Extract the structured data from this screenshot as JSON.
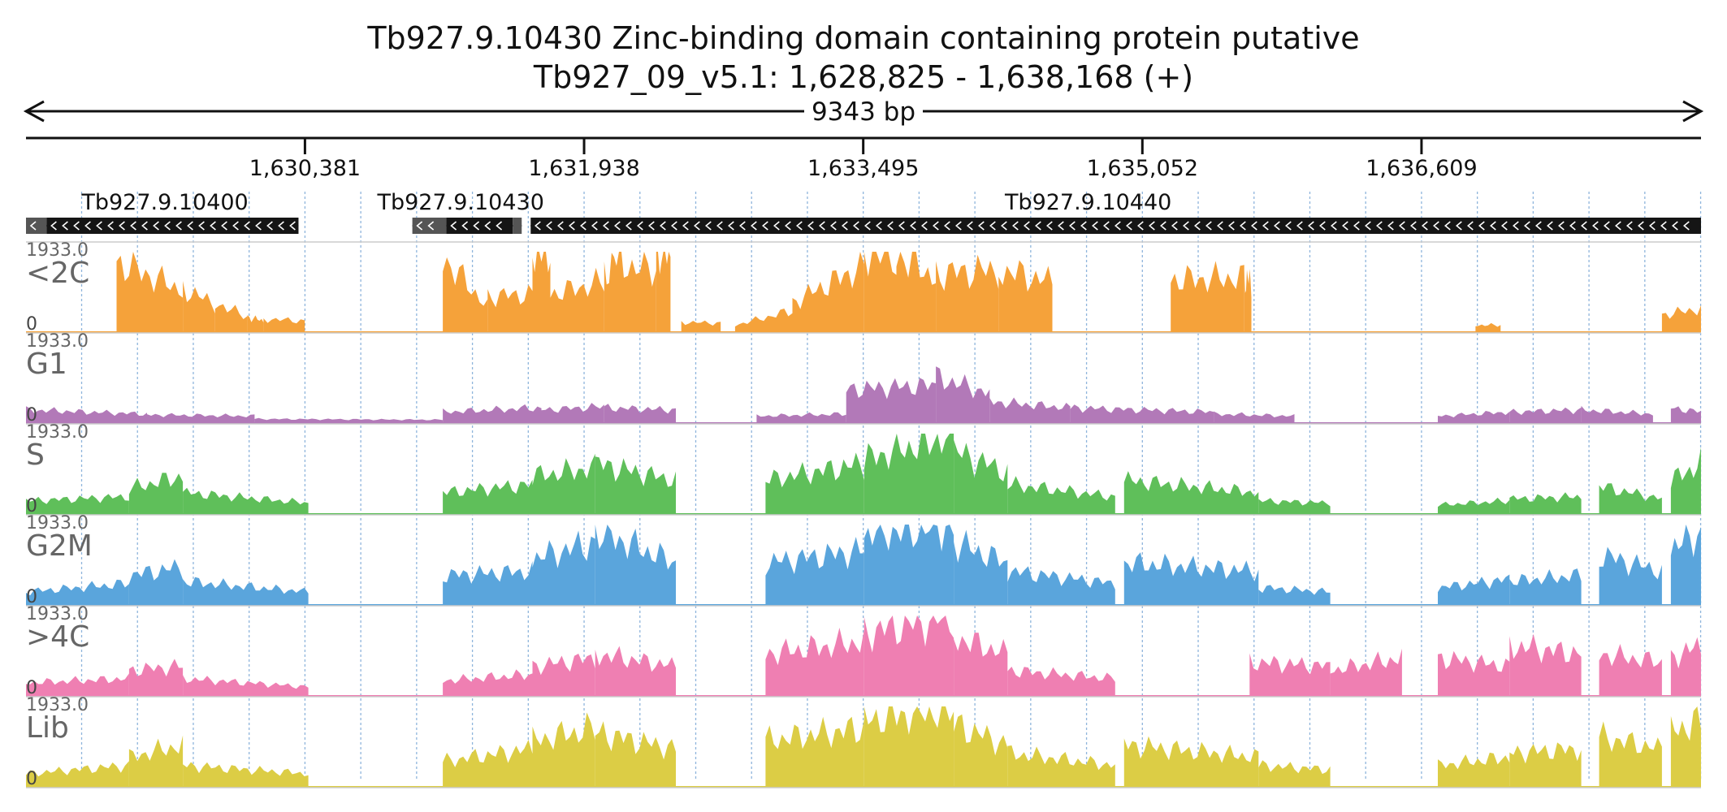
{
  "chart_data": {
    "type": "area",
    "title": "Tb927.9.10430  Zinc-binding domain containing protein  putative",
    "subtitle": "Tb927_09_v5.1: 1,628,825 - 1,638,168 (+)",
    "span_label": "9343 bp",
    "x_range": [
      1628825,
      1638168
    ],
    "x_ticks": [
      1630381,
      1631938,
      1633495,
      1635052,
      1636609
    ],
    "x_tick_labels": [
      "1,630,381",
      "1,631,938",
      "1,633,495",
      "1,635,052",
      "1,636,609"
    ],
    "grid": true,
    "genes": [
      {
        "name": "Tb927.9.10400",
        "strand": "-",
        "start": 1628825,
        "end": 1630345,
        "label_x": 1629600,
        "blocks": [
          [
            1628825,
            1628940,
            "light"
          ],
          [
            1628940,
            1630345,
            "dark"
          ]
        ]
      },
      {
        "name": "Tb927.9.10430",
        "strand": "-",
        "start": 1630980,
        "end": 1631590,
        "label_x": 1631250,
        "blocks": [
          [
            1630980,
            1631170,
            "light"
          ],
          [
            1631170,
            1631540,
            "dark"
          ],
          [
            1631540,
            1631590,
            "light"
          ]
        ]
      },
      {
        "name": "Tb927.9.10440",
        "strand": "-",
        "start": 1631640,
        "end": 1638168,
        "label_x": 1634750,
        "blocks": [
          [
            1631640,
            1638168,
            "dark"
          ]
        ]
      }
    ],
    "tracks": [
      {
        "name": "<2C",
        "color": "#f5a23a",
        "max": 1933.0,
        "min": 0,
        "max_label": "1933.0",
        "min_label": "0"
      },
      {
        "name": "G1",
        "color": "#b279b8",
        "max": 1933.0,
        "min": 0,
        "max_label": "1933.0",
        "min_label": "0"
      },
      {
        "name": "S",
        "color": "#5fbf5a",
        "max": 1933.0,
        "min": 0,
        "max_label": "1933.0",
        "min_label": "0"
      },
      {
        "name": "G2M",
        "color": "#5aa5dc",
        "max": 1933.0,
        "min": 0,
        "max_label": "1933.0",
        "min_label": "0"
      },
      {
        "name": ">4C",
        "color": "#ef7fb2",
        "max": 1933.0,
        "min": 0,
        "max_label": "1933.0",
        "min_label": "0"
      },
      {
        "name": "Lib",
        "color": "#dccd45",
        "max": 1933.0,
        "min": 0,
        "max_label": "1933.0",
        "min_label": "0"
      }
    ],
    "coverage": {
      "<2C": [
        [
          1629330,
          1629700,
          1700,
          1000
        ],
        [
          1629700,
          1629880,
          1050,
          650
        ],
        [
          1629880,
          1630060,
          700,
          350
        ],
        [
          1630060,
          1630150,
          350,
          250
        ],
        [
          1630150,
          1630380,
          300,
          250
        ],
        [
          1631150,
          1631400,
          1800,
          600
        ],
        [
          1631400,
          1631650,
          850,
          900
        ],
        [
          1631650,
          1631750,
          1950,
          1950
        ],
        [
          1631750,
          1632050,
          900,
          1200
        ],
        [
          1632050,
          1632160,
          1400,
          1950
        ],
        [
          1632160,
          1632340,
          1600,
          1500
        ],
        [
          1632340,
          1632420,
          1900,
          1900
        ],
        [
          1632480,
          1632700,
          220,
          200
        ],
        [
          1632780,
          1633100,
          150,
          500
        ],
        [
          1633100,
          1633500,
          700,
          1600
        ],
        [
          1633500,
          1633680,
          1950,
          1800
        ],
        [
          1633680,
          1633900,
          1900,
          1300
        ],
        [
          1633900,
          1634250,
          1400,
          1500
        ],
        [
          1634250,
          1634550,
          1500,
          1200
        ],
        [
          1635210,
          1635620,
          1250,
          1300
        ],
        [
          1635620,
          1635660,
          1250,
          1250
        ],
        [
          1636910,
          1637050,
          150,
          150
        ],
        [
          1637950,
          1638250,
          400,
          550
        ]
      ],
      "G1": [
        [
          1628825,
          1629500,
          300,
          200
        ],
        [
          1629500,
          1630100,
          180,
          150
        ],
        [
          1630100,
          1631150,
          80,
          60
        ],
        [
          1631150,
          1631700,
          250,
          350
        ],
        [
          1631700,
          1632050,
          300,
          380
        ],
        [
          1632050,
          1632450,
          350,
          300
        ],
        [
          1632900,
          1633400,
          150,
          200
        ],
        [
          1633400,
          1633900,
          800,
          900
        ],
        [
          1633900,
          1634200,
          1100,
          700
        ],
        [
          1634200,
          1634650,
          500,
          350
        ],
        [
          1634650,
          1635450,
          350,
          250
        ],
        [
          1635450,
          1635900,
          200,
          150
        ],
        [
          1636700,
          1637100,
          150,
          250
        ],
        [
          1637100,
          1637500,
          250,
          300
        ],
        [
          1637500,
          1637900,
          300,
          200
        ],
        [
          1638000,
          1638250,
          350,
          250
        ]
      ],
      "S": [
        [
          1628825,
          1629400,
          300,
          400
        ],
        [
          1629400,
          1629700,
          600,
          900
        ],
        [
          1629700,
          1630400,
          500,
          250
        ],
        [
          1631150,
          1631650,
          500,
          700
        ],
        [
          1631650,
          1632000,
          900,
          1100
        ],
        [
          1632000,
          1632450,
          1200,
          800
        ],
        [
          1632950,
          1633500,
          800,
          1200
        ],
        [
          1633500,
          1634000,
          1300,
          1900
        ],
        [
          1634000,
          1634300,
          1500,
          1000
        ],
        [
          1634300,
          1634900,
          700,
          400
        ],
        [
          1634950,
          1635700,
          800,
          500
        ],
        [
          1635700,
          1636100,
          300,
          250
        ],
        [
          1636700,
          1637100,
          200,
          300
        ],
        [
          1637100,
          1637500,
          350,
          400
        ],
        [
          1637600,
          1637950,
          650,
          350
        ],
        [
          1638000,
          1638250,
          800,
          1200
        ]
      ],
      "G2M": [
        [
          1628825,
          1629400,
          300,
          500
        ],
        [
          1629400,
          1629700,
          700,
          900
        ],
        [
          1629700,
          1630400,
          550,
          300
        ],
        [
          1631150,
          1631650,
          700,
          800
        ],
        [
          1631650,
          1632000,
          1100,
          1500
        ],
        [
          1632000,
          1632450,
          1800,
          1000
        ],
        [
          1632950,
          1633500,
          1000,
          1300
        ],
        [
          1633500,
          1634000,
          1700,
          1900
        ],
        [
          1634000,
          1634300,
          1500,
          1000
        ],
        [
          1634300,
          1634900,
          800,
          500
        ],
        [
          1634950,
          1635700,
          1000,
          800
        ],
        [
          1635700,
          1636100,
          400,
          300
        ],
        [
          1636700,
          1637100,
          400,
          600
        ],
        [
          1637100,
          1637500,
          550,
          700
        ],
        [
          1637600,
          1637950,
          1200,
          800
        ],
        [
          1638000,
          1638250,
          1400,
          1700
        ]
      ],
      ">4C": [
        [
          1628825,
          1629400,
          300,
          400
        ],
        [
          1629400,
          1629700,
          600,
          700
        ],
        [
          1629700,
          1630400,
          400,
          200
        ],
        [
          1631150,
          1631650,
          350,
          500
        ],
        [
          1631650,
          1632000,
          700,
          900
        ],
        [
          1632000,
          1632450,
          1000,
          700
        ],
        [
          1632950,
          1633500,
          1000,
          1300
        ],
        [
          1633500,
          1634000,
          1500,
          1900
        ],
        [
          1634000,
          1634300,
          1400,
          1000
        ],
        [
          1634300,
          1634900,
          600,
          400
        ],
        [
          1635650,
          1636100,
          800,
          700
        ],
        [
          1636100,
          1636500,
          600,
          900
        ],
        [
          1636700,
          1637100,
          900,
          700
        ],
        [
          1637100,
          1637500,
          1200,
          1000
        ],
        [
          1637600,
          1637950,
          1000,
          800
        ],
        [
          1638000,
          1638250,
          900,
          1200
        ]
      ],
      "Lib": [
        [
          1628825,
          1629400,
          300,
          500
        ],
        [
          1629400,
          1629700,
          700,
          1000
        ],
        [
          1629700,
          1630400,
          500,
          300
        ],
        [
          1631150,
          1631650,
          600,
          900
        ],
        [
          1631650,
          1632000,
          1100,
          1400
        ],
        [
          1632000,
          1632450,
          1300,
          900
        ],
        [
          1632950,
          1633500,
          1100,
          1400
        ],
        [
          1633500,
          1634000,
          1600,
          1900
        ],
        [
          1634000,
          1634300,
          1500,
          1000
        ],
        [
          1634300,
          1634900,
          800,
          500
        ],
        [
          1634950,
          1635700,
          1000,
          700
        ],
        [
          1635700,
          1636100,
          500,
          400
        ],
        [
          1636700,
          1637100,
          500,
          700
        ],
        [
          1637100,
          1637500,
          800,
          900
        ],
        [
          1637600,
          1637950,
          1200,
          900
        ],
        [
          1638000,
          1638250,
          1300,
          1600
        ]
      ]
    }
  }
}
